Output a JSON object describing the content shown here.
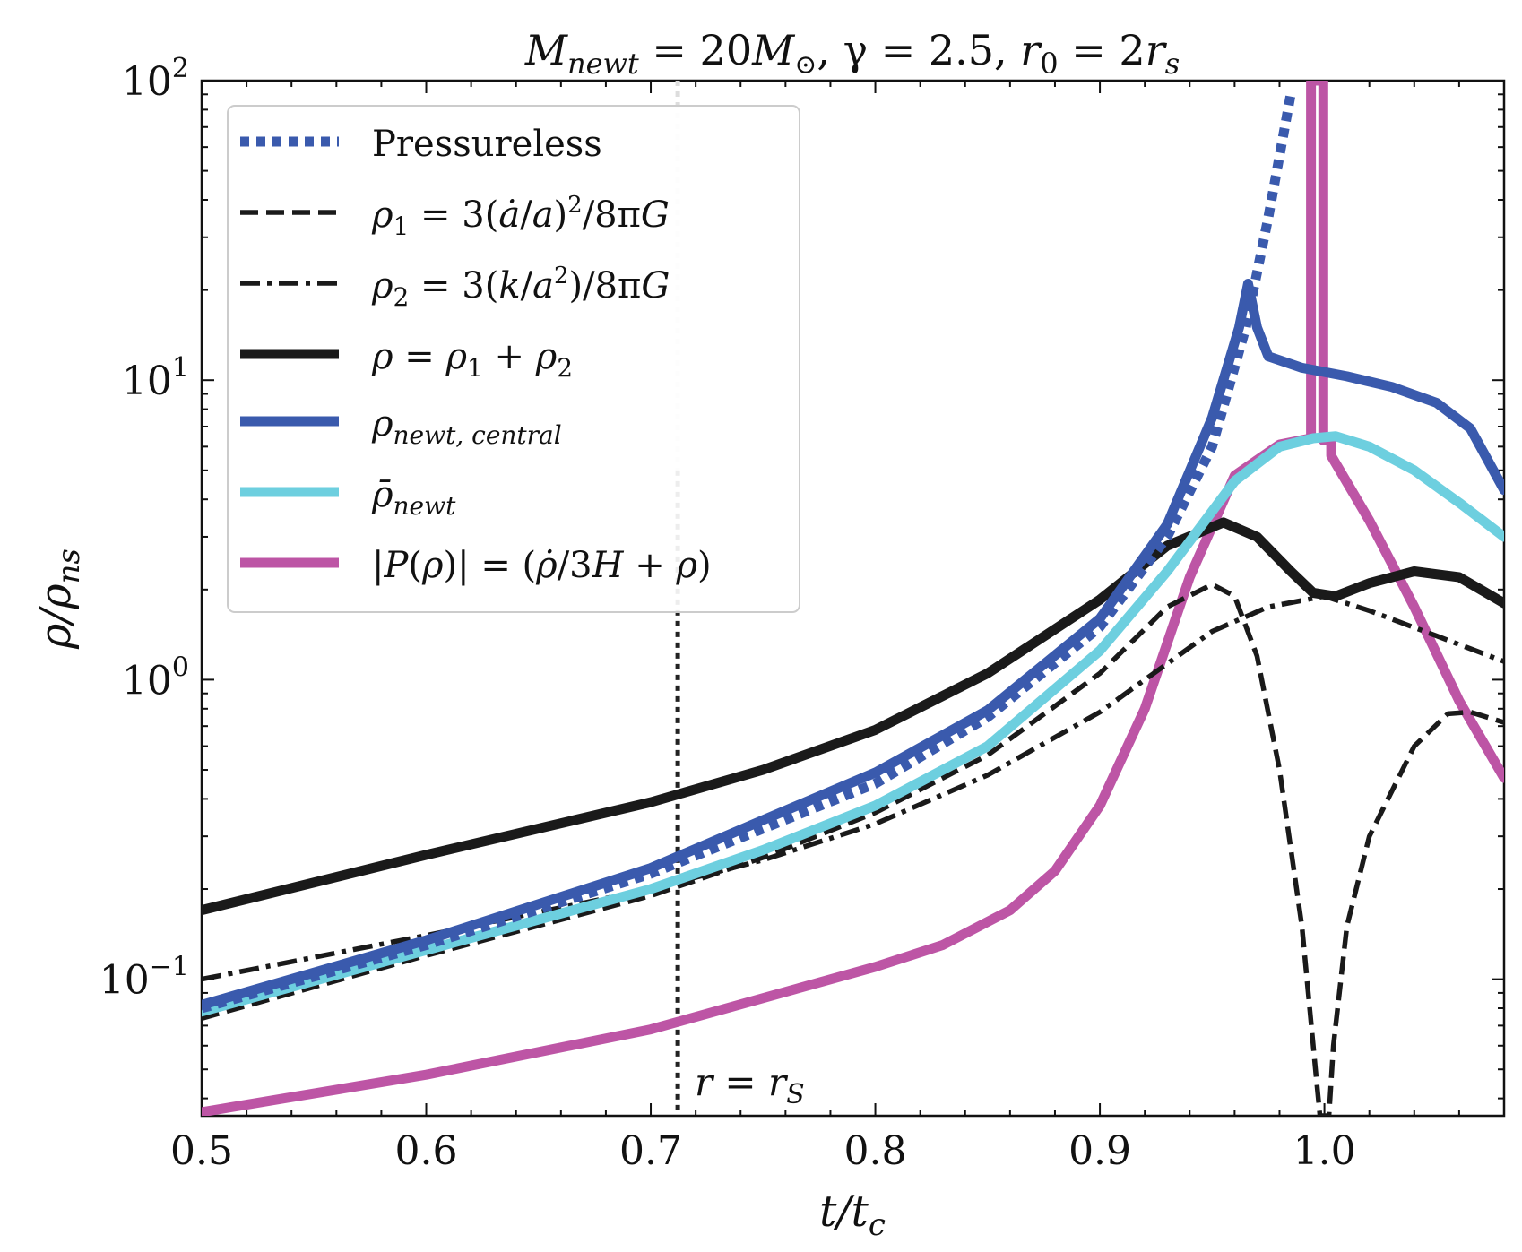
{
  "chart_data": {
    "type": "line",
    "title": "M_newt = 20M_⊙, γ = 2.5, r_0 = 2r_s",
    "title_parts": {
      "m": "M",
      "m_sub": "newt",
      "eq1": " = 20",
      "msun": "M",
      "sun": "⊙",
      "gamma": ", γ = 2.5, ",
      "r": "r",
      "r_sub": "0",
      "eq2": " = 2",
      "rs": "r",
      "rs_sub": "s"
    },
    "xlabel": "t/t_c",
    "xlabel_parts": {
      "t": "t/t",
      "sub": "c"
    },
    "ylabel": "ρ/ρ_ns",
    "ylabel_parts": {
      "rho": "ρ/ρ",
      "sub": "ns"
    },
    "xlim": [
      0.5,
      1.08
    ],
    "ylim": [
      0.035,
      100
    ],
    "yscale": "log",
    "x_ticks": [
      {
        "value": 0.5,
        "label": "0.5"
      },
      {
        "value": 0.6,
        "label": "0.6"
      },
      {
        "value": 0.7,
        "label": "0.7"
      },
      {
        "value": 0.8,
        "label": "0.8"
      },
      {
        "value": 0.9,
        "label": "0.9"
      },
      {
        "value": 1.0,
        "label": "1.0"
      }
    ],
    "y_ticks": [
      {
        "value": 0.1,
        "base": "10",
        "exp": "−1"
      },
      {
        "value": 1,
        "base": "10",
        "exp": "0"
      },
      {
        "value": 10,
        "base": "10",
        "exp": "1"
      },
      {
        "value": 100,
        "base": "10",
        "exp": "2"
      }
    ],
    "vertical_lines": [
      {
        "x": 0.712,
        "color": "#dddddd",
        "range": [
          5.0,
          100
        ],
        "style": "dotted"
      },
      {
        "x": 0.712,
        "color": "#222222",
        "range": [
          0.035,
          5.0
        ],
        "style": "dotted"
      }
    ],
    "annotations": [
      {
        "text_lhs": "r",
        "eq": " = ",
        "text_rhs": "r",
        "sub": "S",
        "x": 0.722,
        "y": 0.042
      }
    ],
    "legend": {
      "location": "top-left",
      "entries": [
        {
          "label": "Pressureless",
          "style": "dotted",
          "color": "#3a5aad"
        },
        {
          "label": "ρ₁ = 3(ȧ/a)²/8πG",
          "style": "dashed",
          "color": "#1a1a1a"
        },
        {
          "label": "ρ₂ = 3(k/a²)/8πG",
          "style": "dashdot",
          "color": "#1a1a1a"
        },
        {
          "label": "ρ = ρ₁ + ρ₂",
          "style": "solid",
          "color": "#1a1a1a"
        },
        {
          "label": "ρ_newt,central",
          "style": "solid",
          "color": "#3a5aad"
        },
        {
          "label": "ρ̄_newt",
          "style": "solid",
          "color": "#6dcfdf"
        },
        {
          "label": "|P(ρ)| = (ρ̇/3H + ρ)",
          "style": "solid",
          "color": "#bd55a5"
        }
      ]
    },
    "series": [
      {
        "name": "Pressureless",
        "color": "#3a5aad",
        "style": "dotted",
        "width": 11,
        "x": [
          0.5,
          0.6,
          0.7,
          0.8,
          0.85,
          0.9,
          0.93,
          0.95,
          0.965,
          0.975,
          0.985
        ],
        "y": [
          0.08,
          0.13,
          0.225,
          0.45,
          0.75,
          1.5,
          3.0,
          6.0,
          15,
          35,
          90
        ]
      },
      {
        "name": "rho1",
        "color": "#1a1a1a",
        "style": "dashed",
        "width": 5.5,
        "x": [
          0.5,
          0.6,
          0.7,
          0.75,
          0.8,
          0.85,
          0.9,
          0.93,
          0.95,
          0.96,
          0.97,
          0.98,
          0.99,
          0.996,
          0.998,
          1.002,
          1.004,
          1.01,
          1.02,
          1.04,
          1.055,
          1.065,
          1.08
        ],
        "y": [
          0.074,
          0.12,
          0.19,
          0.255,
          0.36,
          0.56,
          1.05,
          1.75,
          2.08,
          1.9,
          1.2,
          0.5,
          0.15,
          0.05,
          0.035,
          0.035,
          0.06,
          0.15,
          0.3,
          0.6,
          0.77,
          0.78,
          0.72
        ]
      },
      {
        "name": "rho2",
        "color": "#1a1a1a",
        "style": "dashdot",
        "width": 5.5,
        "x": [
          0.5,
          0.6,
          0.7,
          0.75,
          0.8,
          0.85,
          0.9,
          0.95,
          0.975,
          1.0,
          1.02,
          1.05,
          1.08
        ],
        "y": [
          0.1,
          0.14,
          0.2,
          0.25,
          0.33,
          0.48,
          0.78,
          1.45,
          1.75,
          1.9,
          1.7,
          1.4,
          1.15
        ]
      },
      {
        "name": "rho",
        "color": "#1a1a1a",
        "style": "solid",
        "width": 11,
        "x": [
          0.5,
          0.6,
          0.7,
          0.75,
          0.8,
          0.85,
          0.9,
          0.93,
          0.955,
          0.97,
          0.985,
          0.995,
          1.005,
          1.02,
          1.04,
          1.06,
          1.08
        ],
        "y": [
          0.17,
          0.26,
          0.39,
          0.5,
          0.68,
          1.05,
          1.85,
          2.8,
          3.35,
          3.0,
          2.3,
          1.95,
          1.9,
          2.1,
          2.3,
          2.2,
          1.8
        ]
      },
      {
        "name": "rho_newt_central",
        "color": "#3a5aad",
        "style": "solid",
        "width": 11,
        "x": [
          0.5,
          0.6,
          0.7,
          0.75,
          0.8,
          0.85,
          0.9,
          0.93,
          0.95,
          0.962,
          0.966,
          0.97,
          0.975,
          0.99,
          1.01,
          1.03,
          1.05,
          1.065,
          1.08
        ],
        "y": [
          0.082,
          0.135,
          0.235,
          0.34,
          0.49,
          0.79,
          1.6,
          3.3,
          7.5,
          15.0,
          21.0,
          15.0,
          12.0,
          11.0,
          10.3,
          9.5,
          8.4,
          6.9,
          4.3
        ]
      },
      {
        "name": "rho_bar_newt",
        "color": "#6dcfdf",
        "style": "solid",
        "width": 11,
        "x": [
          0.5,
          0.6,
          0.7,
          0.75,
          0.8,
          0.85,
          0.9,
          0.93,
          0.96,
          0.98,
          0.995,
          1.005,
          1.02,
          1.04,
          1.06,
          1.08
        ],
        "y": [
          0.078,
          0.125,
          0.2,
          0.27,
          0.38,
          0.6,
          1.25,
          2.3,
          4.6,
          6.0,
          6.4,
          6.5,
          6.0,
          5.0,
          3.9,
          3.0
        ]
      },
      {
        "name": "abs_P",
        "color": "#bd55a5",
        "style": "solid",
        "width": 11,
        "x": [
          0.5,
          0.6,
          0.7,
          0.8,
          0.83,
          0.86,
          0.88,
          0.9,
          0.92,
          0.94,
          0.96,
          0.98,
          0.994,
          0.994,
          0.9995,
          0.9995,
          1.003,
          1.003,
          1.02,
          1.04,
          1.06,
          1.08
        ],
        "y": [
          0.036,
          0.048,
          0.068,
          0.11,
          0.13,
          0.17,
          0.23,
          0.38,
          0.8,
          2.2,
          4.8,
          6.1,
          6.4,
          100,
          100,
          6.3,
          6.3,
          5.6,
          3.4,
          1.75,
          0.85,
          0.47
        ]
      }
    ]
  }
}
